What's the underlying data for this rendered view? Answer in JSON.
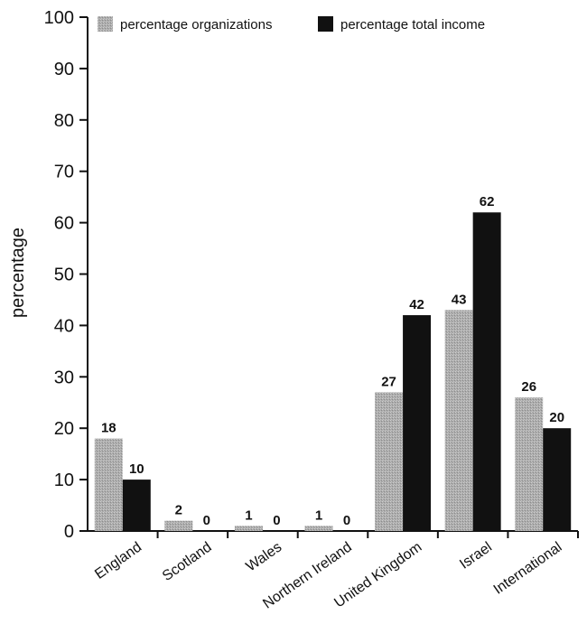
{
  "chart_data": {
    "type": "bar",
    "categories": [
      "England",
      "Scotland",
      "Wales",
      "Northern Ireland",
      "United Kingdom",
      "Israel",
      "International"
    ],
    "series": [
      {
        "name": "percentage organizations",
        "values": [
          18,
          2,
          1,
          1,
          27,
          43,
          26
        ],
        "color": "#a6a6a6"
      },
      {
        "name": "percentage total income",
        "values": [
          10,
          0,
          0,
          0,
          42,
          62,
          20
        ],
        "color": "#111111"
      }
    ],
    "title": "",
    "xlabel": "",
    "ylabel": "percentage",
    "ylim": [
      0,
      100
    ],
    "yticks": [
      0,
      10,
      20,
      30,
      40,
      50,
      60,
      70,
      80,
      90,
      100
    ],
    "legend": "top"
  }
}
